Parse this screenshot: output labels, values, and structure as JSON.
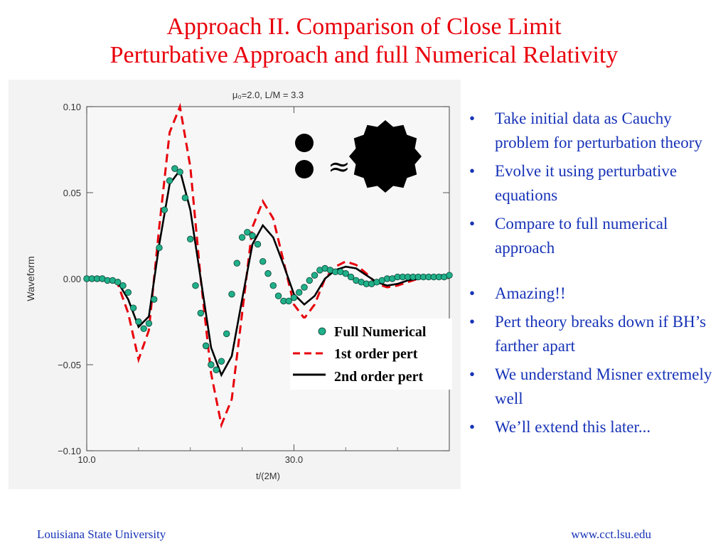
{
  "slide": {
    "title_line1": "Approach II.  Comparison of Close Limit",
    "title_line2": "Perturbative Approach and full Numerical Relativity",
    "bullets": [
      "Take initial data as Cauchy problem for perturbation theory",
      "Evolve it using perturbative equations",
      "Compare to full numerical approach",
      "Amazing!!",
      "Pert theory breaks down if BH’s farther apart",
      "We understand Misner extremely well",
      "We’ll  extend this later..."
    ],
    "footer_left": "Louisiana State University",
    "footer_right": "www.cct.lsu.edu",
    "approx_symbol": "≈",
    "colors": {
      "title": "#e8000b",
      "bullets": "#1733b7",
      "numerical": "#20b08a",
      "first_order": "#e8000b",
      "second_order": "#000000"
    }
  },
  "chart_data": {
    "type": "line",
    "title": "μ₀=2.0, L/M = 3.3",
    "xlabel": "t/(2M)",
    "ylabel": "Waveform",
    "xlim": [
      10,
      45
    ],
    "ylim": [
      -0.1,
      0.1
    ],
    "x_ticks": [
      10,
      30
    ],
    "x_tick_labels": [
      "10.0",
      "30.0"
    ],
    "y_ticks": [
      -0.1,
      -0.05,
      0.0,
      0.05,
      0.1
    ],
    "y_tick_labels": [
      "−0.10",
      "−0.05",
      "0.00",
      "0.05",
      "0.10"
    ],
    "grid": false,
    "legend_position": "lower-right",
    "series": [
      {
        "name": "Full Numerical",
        "style": "markers",
        "x": [
          10.0,
          10.5,
          11.0,
          11.5,
          12.0,
          12.5,
          13.0,
          13.5,
          14.0,
          14.5,
          15.0,
          15.5,
          16.0,
          16.5,
          17.0,
          17.5,
          18.0,
          18.5,
          19.0,
          19.5,
          20.0,
          20.5,
          21.0,
          21.5,
          22.0,
          22.5,
          23.0,
          23.5,
          24.0,
          24.5,
          25.0,
          25.5,
          26.0,
          26.5,
          27.0,
          27.5,
          28.0,
          28.5,
          29.0,
          29.5,
          30.0,
          30.5,
          31.0,
          31.5,
          32.0,
          32.5,
          33.0,
          33.5,
          34.0,
          34.5,
          35.0,
          35.5,
          36.0,
          36.5,
          37.0,
          37.5,
          38.0,
          38.5,
          39.0,
          39.5,
          40.0,
          40.5,
          41.0,
          41.5,
          42.0,
          42.5,
          43.0,
          43.5,
          44.0,
          44.5,
          45.0
        ],
        "y": [
          0.0,
          0.0,
          0.0,
          0.0,
          -0.001,
          -0.001,
          -0.002,
          -0.004,
          -0.008,
          -0.017,
          -0.025,
          -0.029,
          -0.026,
          -0.012,
          0.018,
          0.04,
          0.057,
          0.064,
          0.062,
          0.047,
          0.023,
          -0.004,
          -0.02,
          -0.039,
          -0.05,
          -0.053,
          -0.048,
          -0.032,
          -0.009,
          0.009,
          0.024,
          0.027,
          0.025,
          0.02,
          0.01,
          0.003,
          -0.004,
          -0.01,
          -0.013,
          -0.013,
          -0.011,
          -0.008,
          -0.005,
          -0.001,
          0.002,
          0.005,
          0.006,
          0.005,
          0.004,
          0.004,
          0.003,
          0.001,
          -0.001,
          -0.002,
          -0.003,
          -0.003,
          -0.002,
          -0.001,
          0.0,
          0.0,
          0.001,
          0.001,
          0.001,
          0.001,
          0.001,
          0.001,
          0.001,
          0.001,
          0.001,
          0.001,
          0.002
        ]
      },
      {
        "name": "1st order pert",
        "style": "dashed",
        "x": [
          10,
          12,
          13,
          14,
          15,
          16,
          17,
          18,
          19,
          20,
          21,
          22,
          23,
          24,
          25,
          26,
          27,
          28,
          29,
          30,
          31,
          32,
          33,
          34,
          35,
          36,
          37,
          38,
          39,
          40,
          41,
          42,
          43,
          44,
          45
        ],
        "y": [
          0,
          0,
          -0.003,
          -0.02,
          -0.047,
          -0.03,
          0.03,
          0.085,
          0.1,
          0.065,
          0.0,
          -0.055,
          -0.085,
          -0.07,
          -0.02,
          0.03,
          0.045,
          0.035,
          0.01,
          -0.015,
          -0.023,
          -0.015,
          0.0,
          0.007,
          0.01,
          0.008,
          0.003,
          -0.003,
          -0.005,
          -0.004,
          -0.002,
          0,
          0.001,
          0.001,
          0.001
        ]
      },
      {
        "name": "2nd order pert",
        "style": "solid",
        "x": [
          10,
          12,
          13,
          14,
          15,
          16,
          17,
          18,
          19,
          20,
          21,
          22,
          23,
          24,
          25,
          26,
          27,
          28,
          29,
          30,
          31,
          32,
          33,
          34,
          35,
          36,
          37,
          38,
          39,
          40,
          41,
          42,
          43,
          44,
          45
        ],
        "y": [
          0,
          0,
          -0.002,
          -0.012,
          -0.028,
          -0.022,
          0.02,
          0.055,
          0.063,
          0.04,
          0.0,
          -0.04,
          -0.056,
          -0.045,
          -0.012,
          0.02,
          0.031,
          0.024,
          0.008,
          -0.009,
          -0.015,
          -0.01,
          0.0,
          0.005,
          0.007,
          0.006,
          0.002,
          -0.002,
          -0.004,
          -0.003,
          -0.001,
          0,
          0.001,
          0.002,
          0.002
        ]
      }
    ]
  }
}
